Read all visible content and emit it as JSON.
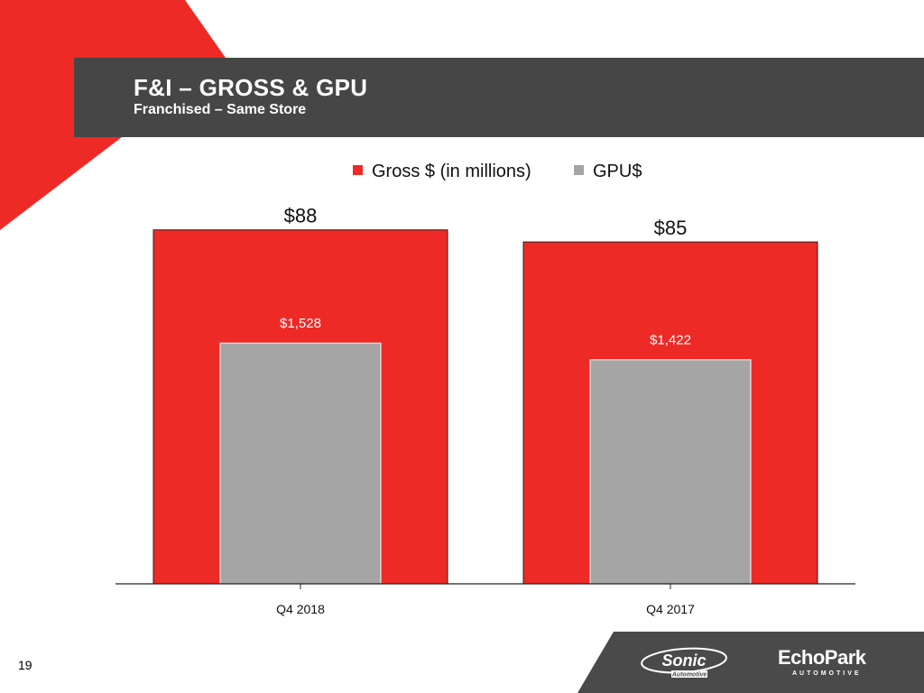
{
  "slide": {
    "title": "F&I – GROSS & GPU",
    "subtitle": "Franchised – Same Store",
    "page_number": "19"
  },
  "colors": {
    "accent_red": "#ee2a27",
    "header_gray": "#464646",
    "bar_gray": "#a5a5a5",
    "footer_gray": "#4a4a4a"
  },
  "logos": {
    "sonic": "Sonic Automotive",
    "echopark": "EchoPark AUTOMOTIVE"
  },
  "chart_data": {
    "type": "bar",
    "categories": [
      "Q4 2018",
      "Q4 2017"
    ],
    "series": [
      {
        "name": "Gross $ (in millions)",
        "color": "#ee2a27",
        "values": [
          88,
          85
        ],
        "labels": [
          "$88",
          "$85"
        ]
      },
      {
        "name": "GPU$",
        "color": "#a5a5a5",
        "values": [
          1528,
          1422
        ],
        "labels": [
          "$1,528",
          "$1,422"
        ]
      }
    ],
    "ylim_gross": [
      0,
      94
    ],
    "ylim_gpu": [
      0,
      2400
    ],
    "legend_position": "top-center",
    "grid": false
  }
}
